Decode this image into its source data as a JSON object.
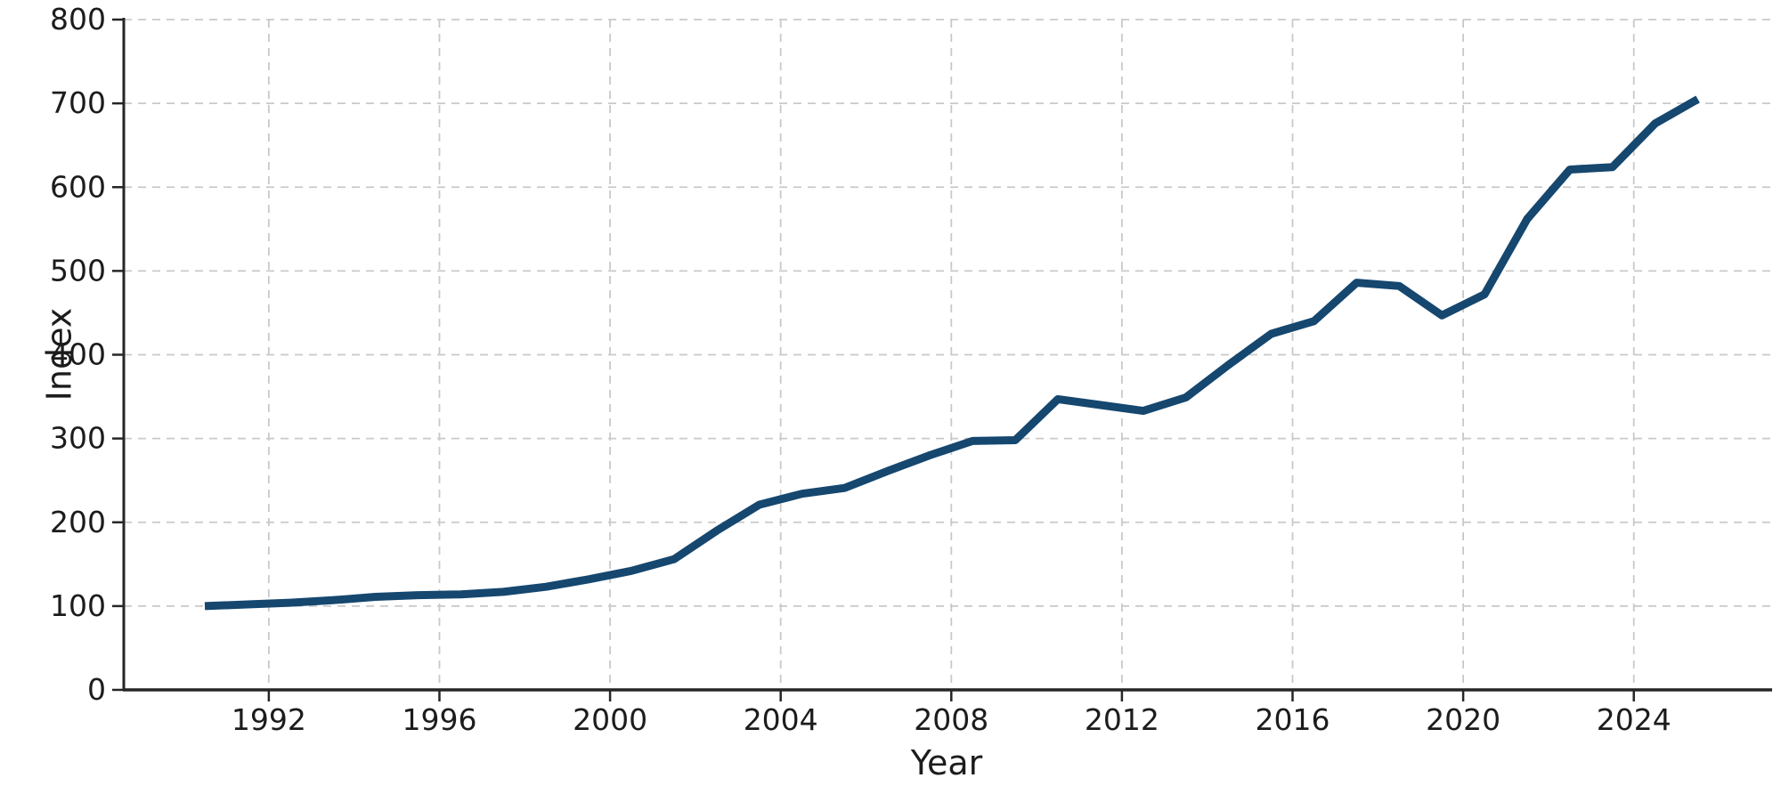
{
  "figure": {
    "background": "#ffffff"
  },
  "chart_data": {
    "type": "line",
    "title": "",
    "xlabel": "Year",
    "ylabel": "Index",
    "series": [
      {
        "name": "Index",
        "x": [
          1990,
          1991,
          1992,
          1993,
          1994,
          1995,
          1996,
          1997,
          1998,
          1999,
          2000,
          2001,
          2002,
          2003,
          2004,
          2005,
          2006,
          2007,
          2008,
          2009,
          2010,
          2011,
          2012,
          2013,
          2014,
          2015,
          2016,
          2017,
          2018,
          2019,
          2020,
          2021,
          2022,
          2023,
          2024,
          2025
        ],
        "values": [
          100,
          102,
          104,
          107,
          111,
          113,
          114,
          117,
          123,
          132,
          142,
          156,
          190,
          221,
          234,
          241,
          261,
          280,
          297,
          298,
          347,
          340,
          333,
          349,
          388,
          425,
          440,
          486,
          482,
          447,
          472,
          562,
          621,
          624,
          676,
          705
        ]
      }
    ],
    "xlim": [
      1988.6,
      2027.2
    ],
    "ylim": [
      0,
      800
    ],
    "xticks": [
      1992,
      1996,
      2000,
      2004,
      2008,
      2012,
      2016,
      2020,
      2024
    ],
    "yticks": [
      0,
      100,
      200,
      300,
      400,
      500,
      600,
      700,
      800
    ],
    "x_plot_offset": 0.5,
    "grid": true,
    "grid_style": "dashed",
    "legend_position": "none",
    "colors": {
      "line": "#15476f",
      "grid": "#c9c9c9",
      "spine": "#262626",
      "tick": "#262626",
      "text": "#1c1c1c"
    },
    "line_width": 9
  }
}
